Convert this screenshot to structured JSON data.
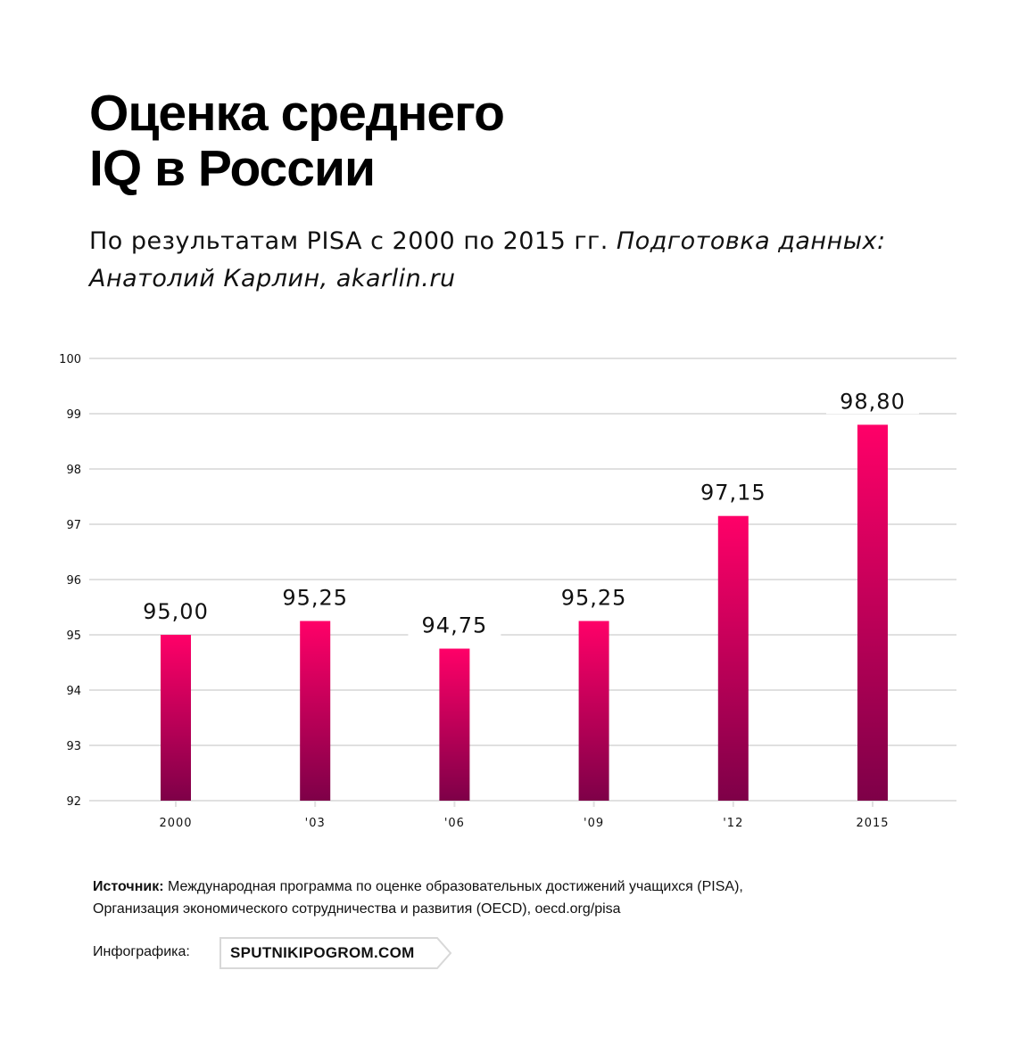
{
  "header": {
    "title_line1": "Оценка среднего",
    "title_line2": "IQ в России",
    "subtitle_regular": "По результатам PISA с 2000 по 2015 гг. ",
    "subtitle_italic": "Подготовка данных: Анатолий Карлин, akarlin.ru"
  },
  "colors": {
    "bar_top": "#ff0068",
    "bar_bottom": "#7e0048",
    "gridline": "#e0e0e0",
    "text": "#111111"
  },
  "chart_data": {
    "type": "bar",
    "title": "Оценка среднего IQ в России",
    "subtitle": "По результатам PISA с 2000 по 2015 гг. Подготовка данных: Анатолий Карлин, akarlin.ru",
    "categories": [
      "2000",
      "'03",
      "'06",
      "'09",
      "'12",
      "2015"
    ],
    "values": [
      95.0,
      95.25,
      94.75,
      95.25,
      97.15,
      98.8
    ],
    "data_labels": [
      "95,00",
      "95,25",
      "94,75",
      "95,25",
      "97,15",
      "98,80"
    ],
    "xlabel": "",
    "ylabel": "",
    "ylim": [
      92,
      100
    ],
    "yticks": [
      92,
      93,
      94,
      95,
      96,
      97,
      98,
      99,
      100
    ],
    "grid": true,
    "legend": "none"
  },
  "footer": {
    "source_label": "Источник:",
    "source_text_line1": " Международная программа по оценке образовательных достижений учащихся (PISA),",
    "source_text_line2": "Организация экономического сотрудничества и развития (OECD), oecd.org/pisa",
    "credit_label": "Инфографика:",
    "credit_logo": "SPUTNIKIPOGROM.COM"
  }
}
